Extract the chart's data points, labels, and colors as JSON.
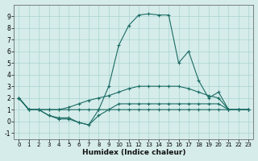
{
  "xlabel": "Humidex (Indice chaleur)",
  "xlim": [
    -0.5,
    23.5
  ],
  "ylim": [
    -1.5,
    10
  ],
  "yticks": [
    -1,
    0,
    1,
    2,
    3,
    4,
    5,
    6,
    7,
    8,
    9
  ],
  "xticks": [
    0,
    1,
    2,
    3,
    4,
    5,
    6,
    7,
    8,
    9,
    10,
    11,
    12,
    13,
    14,
    15,
    16,
    17,
    18,
    19,
    20,
    21,
    22,
    23
  ],
  "background_color": "#d5ecea",
  "line_color": "#1a6b63",
  "series": [
    {
      "x": [
        0,
        1,
        2,
        3,
        4,
        5,
        6,
        7,
        8,
        9,
        10,
        11,
        12,
        13,
        14,
        15,
        16,
        17,
        18,
        19,
        20,
        21,
        22,
        23
      ],
      "y": [
        2,
        1,
        1,
        0.5,
        0.2,
        0.2,
        -0.1,
        -0.3,
        1.0,
        3,
        6.5,
        8.2,
        9.1,
        9.2,
        9.1,
        9.1,
        5.0,
        6.0,
        3.5,
        2.0,
        2.5,
        1.0,
        1.0,
        1.0
      ]
    },
    {
      "x": [
        0,
        1,
        2,
        3,
        4,
        5,
        6,
        7,
        8,
        9,
        10,
        11,
        12,
        13,
        14,
        15,
        16,
        17,
        18,
        19,
        20,
        21,
        22,
        23
      ],
      "y": [
        2,
        1,
        1,
        1.0,
        1.0,
        1.2,
        1.5,
        1.8,
        2.0,
        2.2,
        2.5,
        2.8,
        3.0,
        3.0,
        3.0,
        3.0,
        3.0,
        2.8,
        2.5,
        2.2,
        2.0,
        1.0,
        1.0,
        1.0
      ]
    },
    {
      "x": [
        0,
        1,
        2,
        3,
        4,
        5,
        6,
        7,
        8,
        9,
        10,
        11,
        12,
        13,
        14,
        15,
        16,
        17,
        18,
        19,
        20,
        21,
        22,
        23
      ],
      "y": [
        2,
        1,
        1,
        1.0,
        1.0,
        1.0,
        1.0,
        1.0,
        1.0,
        1.0,
        1.0,
        1.0,
        1.0,
        1.0,
        1.0,
        1.0,
        1.0,
        1.0,
        1.0,
        1.0,
        1.0,
        1.0,
        1.0,
        1.0
      ]
    },
    {
      "x": [
        0,
        1,
        2,
        3,
        4,
        5,
        6,
        7,
        8,
        9,
        10,
        11,
        12,
        13,
        14,
        15,
        16,
        17,
        18,
        19,
        20,
        21,
        22,
        23
      ],
      "y": [
        2,
        1,
        1,
        0.5,
        0.3,
        0.3,
        -0.1,
        -0.3,
        0.5,
        1.0,
        1.5,
        1.5,
        1.5,
        1.5,
        1.5,
        1.5,
        1.5,
        1.5,
        1.5,
        1.5,
        1.5,
        1.0,
        1.0,
        1.0
      ]
    }
  ]
}
